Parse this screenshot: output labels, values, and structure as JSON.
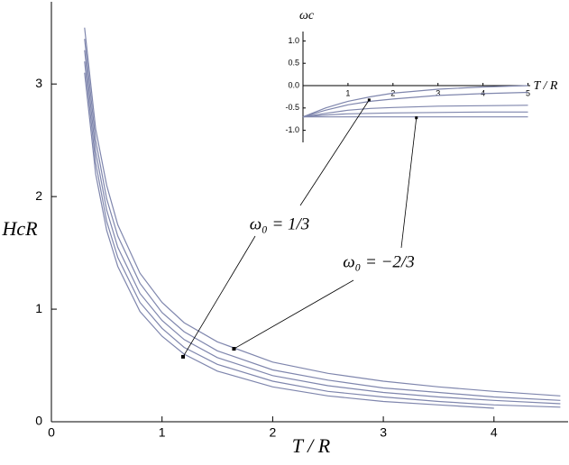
{
  "chart_data": [
    {
      "type": "line",
      "xlabel": "T / R",
      "ylabel": "HcR",
      "x": [
        0.3,
        0.4,
        0.5,
        0.6,
        0.8,
        1,
        1.2,
        1.5,
        2,
        2.5,
        3,
        3.5,
        4,
        4.6
      ],
      "series": [
        {
          "color": "#7f86ad",
          "values": [
            3.5,
            2.6,
            2.1,
            1.75,
            1.32,
            1.06,
            0.88,
            0.71,
            0.53,
            0.43,
            0.36,
            0.31,
            0.27,
            0.23
          ]
        },
        {
          "color": "#7f86ad",
          "values": [
            3.4,
            2.5,
            1.98,
            1.65,
            1.23,
            0.97,
            0.8,
            0.63,
            0.46,
            0.37,
            0.3,
            0.26,
            0.22,
            0.19
          ]
        },
        {
          "color": "#7f86ad",
          "values": [
            3.3,
            2.4,
            1.88,
            1.55,
            1.14,
            0.9,
            0.73,
            0.57,
            0.41,
            0.32,
            0.26,
            0.22,
            0.19,
            0.16
          ]
        },
        {
          "color": "#7f86ad",
          "values": [
            3.2,
            2.3,
            1.78,
            1.46,
            1.06,
            0.83,
            0.66,
            0.51,
            0.36,
            0.27,
            0.22,
            0.18,
            0.15,
            0.13
          ]
        },
        {
          "color": "#7f86ad",
          "values": [
            3.1,
            2.2,
            1.7,
            1.38,
            0.98,
            0.76,
            0.6,
            0.45,
            0.31,
            0.23,
            0.18,
            0.15,
            0.12,
            null
          ]
        }
      ],
      "xlim": [
        0,
        4.67
      ],
      "ylim": [
        0,
        3.73
      ],
      "xticks": [
        0,
        1,
        2,
        3,
        4
      ],
      "yticks": [
        0,
        1,
        2,
        3
      ],
      "annotations": [
        {
          "text": "ω₀ = 1/3",
          "main_point": [
            1.19,
            0.577
          ],
          "inset_point": [
            1.47,
            -0.32
          ]
        },
        {
          "text": "ω₀ = −2/3",
          "main_point": [
            1.65,
            0.648
          ],
          "inset_point": [
            2.52,
            -0.72
          ]
        }
      ]
    },
    {
      "type": "line",
      "xlabel": "T / R",
      "ylabel": "ωc",
      "x": [
        0,
        0.5,
        1,
        1.5,
        2,
        3,
        4,
        5
      ],
      "series": [
        {
          "color": "#7f86ad",
          "values": [
            -0.7,
            -0.5,
            -0.35,
            -0.25,
            -0.17,
            -0.08,
            -0.03,
            0.0
          ]
        },
        {
          "color": "#7f86ad",
          "values": [
            -0.7,
            -0.55,
            -0.43,
            -0.35,
            -0.3,
            -0.22,
            -0.18,
            -0.15
          ]
        },
        {
          "color": "#7f86ad",
          "values": [
            -0.7,
            -0.62,
            -0.55,
            -0.51,
            -0.49,
            -0.46,
            -0.45,
            -0.44
          ]
        },
        {
          "color": "#7f86ad",
          "values": [
            -0.7,
            -0.66,
            -0.63,
            -0.62,
            -0.61,
            -0.6,
            -0.59,
            -0.59
          ]
        },
        {
          "color": "#7f86ad",
          "values": [
            -0.7,
            -0.7,
            -0.7,
            -0.7,
            -0.7,
            -0.7,
            -0.7,
            -0.7
          ]
        }
      ],
      "xlim": [
        0,
        5.05
      ],
      "ylim": [
        -1.27,
        1.21
      ],
      "xticks": [
        1,
        2,
        3,
        4,
        5
      ],
      "yticks": [
        {
          "value": 1.0,
          "label": "1.0"
        },
        {
          "value": 0.5,
          "label": "0.5"
        },
        {
          "value": 0.0,
          "label": "0.0"
        },
        {
          "value": -0.5,
          "label": "-0.5"
        },
        {
          "value": -1.0,
          "label": "-1.0"
        }
      ]
    }
  ]
}
